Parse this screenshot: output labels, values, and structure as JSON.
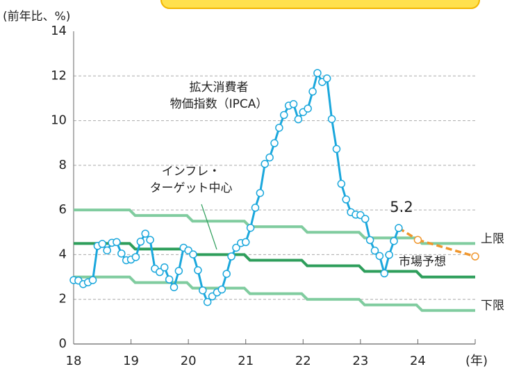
{
  "chart_data": {
    "type": "line",
    "ylabel": "(前年比、%)",
    "xlabel": "(年)",
    "xlim": [
      18,
      25
    ],
    "xticks": [
      18,
      19,
      20,
      21,
      22,
      23,
      24
    ],
    "ylim": [
      0,
      14
    ],
    "yticks": [
      0,
      2,
      4,
      6,
      8,
      10,
      12,
      14
    ],
    "grid": true,
    "series": [
      {
        "name": [
          "拡大消費者",
          "物価指数（IPCA）"
        ],
        "color": "#1aa7dc",
        "markers": true,
        "x": [
          18,
          18.0833,
          18.1667,
          18.25,
          18.3333,
          18.4167,
          18.5,
          18.5833,
          18.6667,
          18.75,
          18.8333,
          18.9167,
          19,
          19.0833,
          19.1667,
          19.25,
          19.3333,
          19.4167,
          19.5,
          19.5833,
          19.6667,
          19.75,
          19.8333,
          19.9167,
          20,
          20.0833,
          20.1667,
          20.25,
          20.3333,
          20.4167,
          20.5,
          20.5833,
          20.6667,
          20.75,
          20.8333,
          20.9167,
          21,
          21.0833,
          21.1667,
          21.25,
          21.3333,
          21.4167,
          21.5,
          21.5833,
          21.6667,
          21.75,
          21.8333,
          21.9167,
          22,
          22.0833,
          22.1667,
          22.25,
          22.3333,
          22.4167,
          22.5,
          22.5833,
          22.6667,
          22.75,
          22.8333,
          22.9167,
          23,
          23.0833,
          23.1667,
          23.25,
          23.3333,
          23.4167,
          23.5,
          23.5833,
          23.6667
        ],
        "values": [
          2.86,
          2.84,
          2.68,
          2.76,
          2.86,
          4.39,
          4.48,
          4.19,
          4.53,
          4.56,
          4.05,
          3.75,
          3.78,
          3.89,
          4.58,
          4.94,
          4.66,
          3.37,
          3.22,
          3.43,
          2.89,
          2.54,
          3.27,
          4.31,
          4.19,
          4.01,
          3.3,
          2.4,
          1.88,
          2.13,
          2.31,
          2.44,
          3.14,
          3.92,
          4.31,
          4.52,
          4.56,
          5.2,
          6.1,
          6.76,
          8.06,
          8.35,
          8.99,
          9.68,
          10.25,
          10.67,
          10.74,
          10.06,
          10.38,
          10.54,
          11.3,
          12.13,
          11.73,
          11.89,
          10.07,
          8.73,
          7.17,
          6.47,
          5.9,
          5.79,
          5.77,
          5.6,
          4.65,
          4.18,
          3.94,
          3.16,
          3.99,
          4.61,
          5.19
        ],
        "last_label": "5.2"
      },
      {
        "name": [
          "市場予想"
        ],
        "color": "#f0962c",
        "markers": true,
        "dashed": true,
        "x": [
          24,
          25
        ],
        "values": [
          4.66,
          3.92
        ]
      },
      {
        "name": [
          "上限"
        ],
        "color": "#80cc9f",
        "step": true,
        "x": [
          18,
          19,
          20,
          21,
          22,
          23,
          24
        ],
        "values": [
          6.0,
          5.75,
          5.5,
          5.25,
          5.0,
          4.75,
          4.5
        ]
      },
      {
        "name": [
          "インフレ・",
          "ターゲット中心"
        ],
        "color": "#2e9e5b",
        "step": true,
        "x": [
          18,
          19,
          20,
          21,
          22,
          23,
          24
        ],
        "values": [
          4.5,
          4.25,
          4.0,
          3.75,
          3.5,
          3.25,
          3.0
        ]
      },
      {
        "name": [
          "下限"
        ],
        "color": "#80cc9f",
        "step": true,
        "x": [
          18,
          19,
          20,
          21,
          22,
          23,
          24
        ],
        "values": [
          3.0,
          2.75,
          2.5,
          2.25,
          2.0,
          1.75,
          1.5
        ]
      }
    ]
  }
}
